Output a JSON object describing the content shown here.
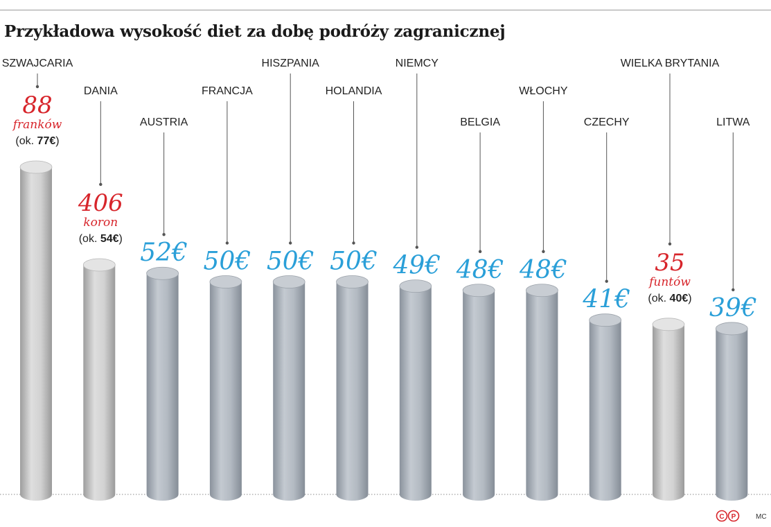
{
  "chart_data": {
    "type": "bar",
    "title": "Przykładowa wysokość diet za dobę podróży zagranicznej",
    "xlabel": "",
    "ylabel": "",
    "ylim": [
      0,
      80
    ],
    "grid": false,
    "legend": "none",
    "unit": "EUR",
    "categories": [
      "SZWAJCARIA",
      "DANIA",
      "AUSTRIA",
      "FRANCJA",
      "HISZPANIA",
      "HOLANDIA",
      "NIEMCY",
      "BELGIA",
      "WŁOCHY",
      "CZECHY",
      "WIELKA BRYTANIA",
      "LITWA"
    ],
    "values": [
      77,
      54,
      52,
      50,
      50,
      50,
      49,
      48,
      48,
      41,
      40,
      39
    ],
    "value_labels": [
      {
        "amount": "88",
        "currency": "franków",
        "approx_prefix": "(ok. ",
        "approx_value": "77€",
        "approx_suffix": ")"
      },
      {
        "amount": "406",
        "currency": "koron",
        "approx_prefix": "(ok. ",
        "approx_value": "54€",
        "approx_suffix": ")"
      },
      {
        "amount": "52€"
      },
      {
        "amount": "50€"
      },
      {
        "amount": "50€"
      },
      {
        "amount": "50€"
      },
      {
        "amount": "49€"
      },
      {
        "amount": "48€"
      },
      {
        "amount": "48€"
      },
      {
        "amount": "41€"
      },
      {
        "amount": "35",
        "currency": "funtów",
        "approx_prefix": "(ok. ",
        "approx_value": "40€",
        "approx_suffix": ")"
      },
      {
        "amount": "39€"
      }
    ]
  },
  "colors": {
    "euro_label": "#2a9fd8",
    "foreign_currency_label": "#d7252b",
    "euro_column": "#a9b0b8",
    "foreign_column": "#c2c2c2",
    "leader_line": "#555555",
    "country_text": "#222222"
  },
  "footer": {
    "logo": "copyright-p-logo",
    "credit": "MC"
  }
}
